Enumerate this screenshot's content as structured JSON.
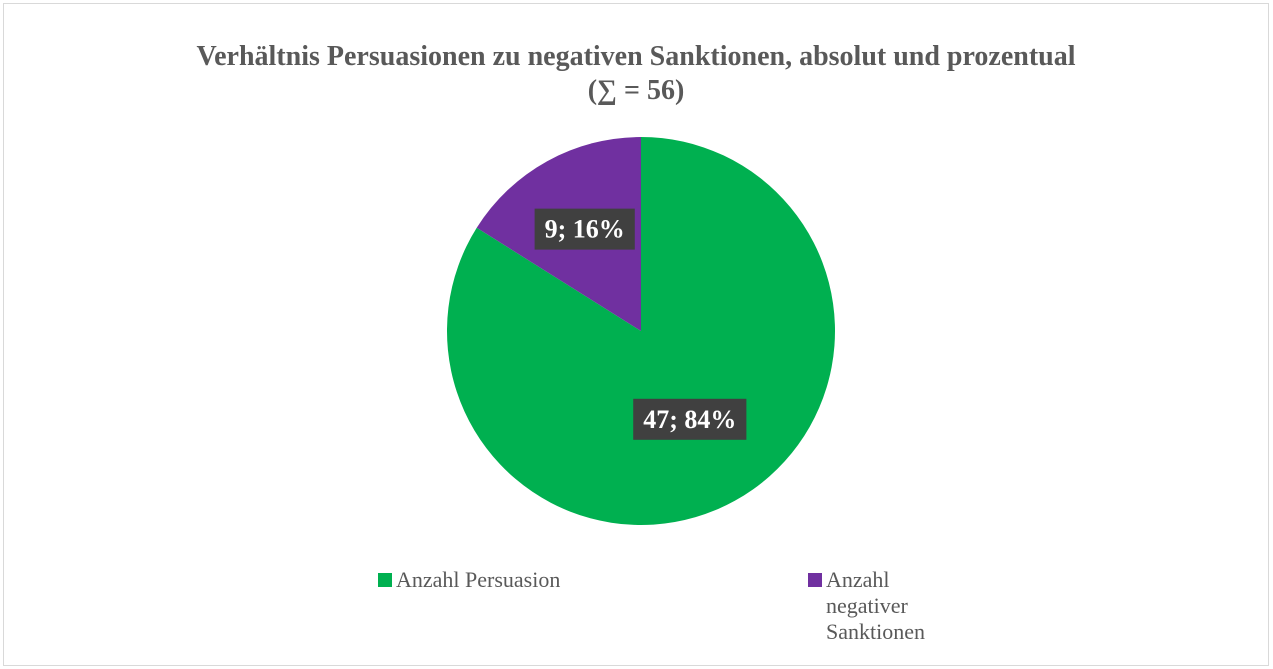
{
  "chart_data": {
    "type": "pie",
    "title": "Verhältnis Persuasionen zu negativen Sanktionen, absolut und prozentual",
    "subtitle": "(∑ = 56)",
    "categories": [
      "Anzahl Persuasion",
      "Anzahl negativer Sanktionen"
    ],
    "values": [
      47,
      9
    ],
    "percentages": [
      84,
      16
    ],
    "data_labels": [
      "47; 84%",
      "9; 16%"
    ],
    "colors": [
      "#00b050",
      "#7030a0"
    ],
    "label_background": "#404040",
    "label_text_color": "#ffffff",
    "legend_position": "bottom",
    "start_angle_deg": 0,
    "direction": "clockwise"
  },
  "legend": {
    "items": [
      {
        "label": "Anzahl Persuasion",
        "color": "#00b050"
      },
      {
        "label": "Anzahl negativer Sanktionen",
        "color": "#7030a0"
      }
    ]
  }
}
